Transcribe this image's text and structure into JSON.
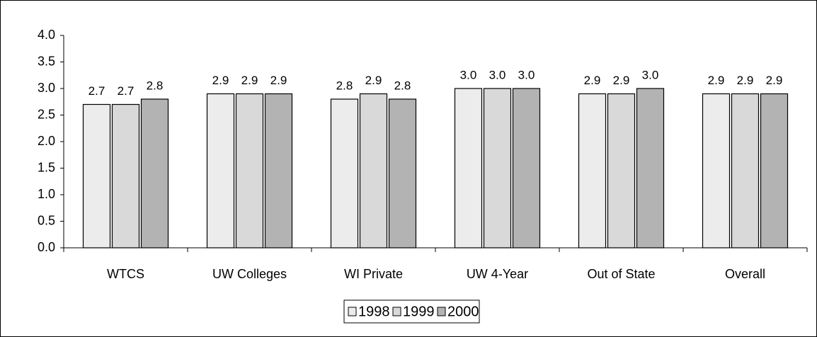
{
  "chart_data": {
    "type": "bar",
    "categories": [
      "WTCS",
      "UW Colleges",
      "WI Private",
      "UW 4-Year",
      "Out of State",
      "Overall"
    ],
    "series": [
      {
        "name": "1998",
        "color": "#ececec",
        "values": [
          2.7,
          2.9,
          2.8,
          3.0,
          2.9,
          2.9
        ],
        "value_labels": [
          "2.7",
          "2.9",
          "2.8",
          "3.0",
          "2.9",
          "2.9"
        ]
      },
      {
        "name": "1999",
        "color": "#d9d9d9",
        "values": [
          2.7,
          2.9,
          2.9,
          3.0,
          2.9,
          2.9
        ],
        "value_labels": [
          "2.7",
          "2.9",
          "2.9",
          "3.0",
          "2.9",
          "2.9"
        ]
      },
      {
        "name": "2000",
        "color": "#b3b3b3",
        "values": [
          2.8,
          2.9,
          2.8,
          3.0,
          3.0,
          2.9
        ],
        "value_labels": [
          "2.8",
          "2.9",
          "2.8",
          "3.0",
          "3.0",
          "2.9"
        ]
      }
    ],
    "ylim": [
      0,
      4
    ],
    "yticks": [
      {
        "value": 0,
        "label": "0.0"
      },
      {
        "value": 0.5,
        "label": "0.5"
      },
      {
        "value": 1,
        "label": "1.0"
      },
      {
        "value": 1.5,
        "label": "1.5"
      },
      {
        "value": 2,
        "label": "2.0"
      },
      {
        "value": 2.5,
        "label": "2.5"
      },
      {
        "value": 3,
        "label": "3.0"
      },
      {
        "value": 3.5,
        "label": "3.5"
      },
      {
        "value": 4,
        "label": "4.0"
      }
    ],
    "legend": "bottom"
  }
}
